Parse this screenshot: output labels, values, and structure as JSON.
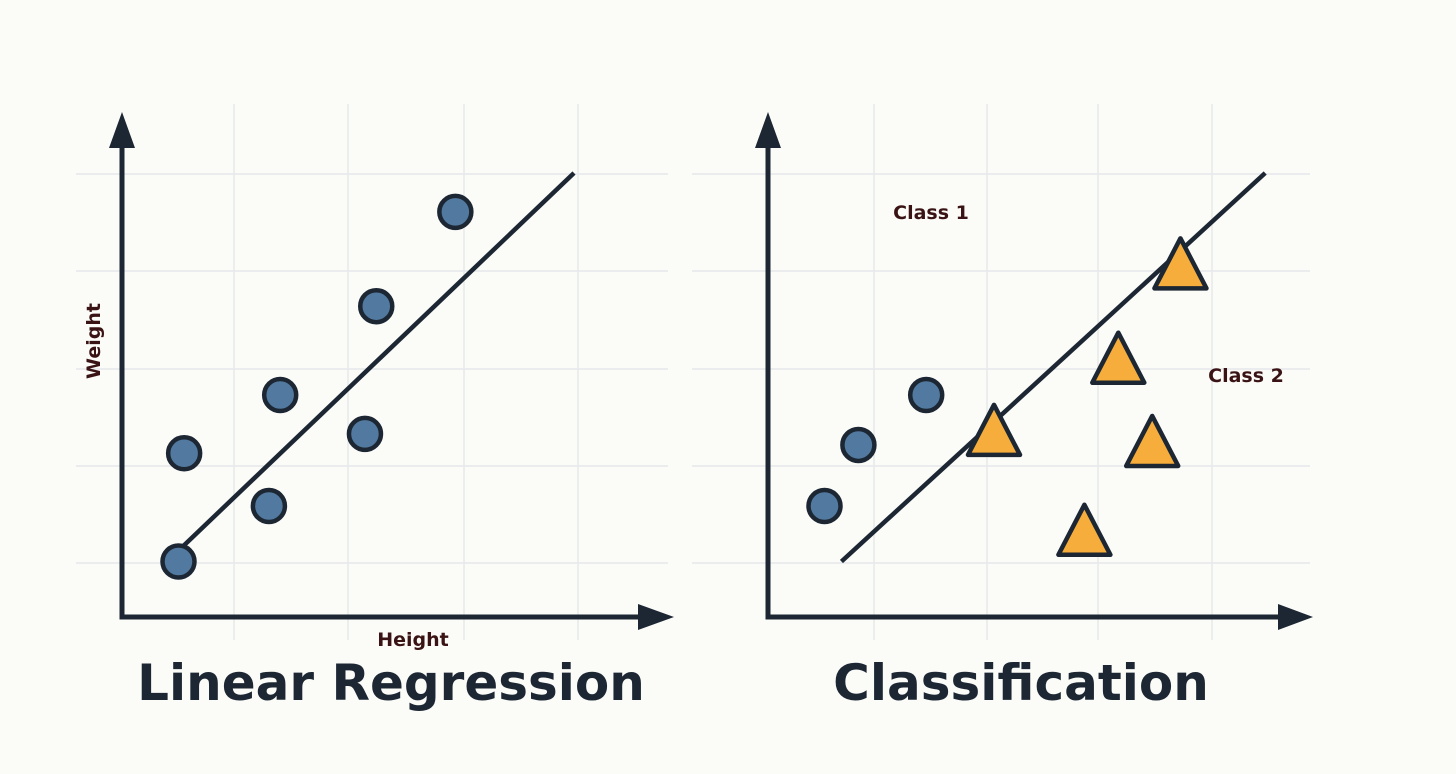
{
  "left_panel": {
    "title": "Linear Regression",
    "x_axis_label": "Height",
    "y_axis_label": "Weight",
    "marker": "circle",
    "points": [
      {
        "x": 1,
        "y": 1
      },
      {
        "x": 1.1,
        "y": 2.95
      },
      {
        "x": 2.6,
        "y": 2
      },
      {
        "x": 2.8,
        "y": 4
      },
      {
        "x": 4.3,
        "y": 3.3
      },
      {
        "x": 4.5,
        "y": 5.6
      },
      {
        "x": 5.9,
        "y": 7.3
      }
    ]
  },
  "right_panel": {
    "title": "Classification",
    "class_labels": [
      "Class 1",
      "Class 2"
    ],
    "classes": [
      {
        "name": "Class 1",
        "marker": "circle",
        "points": [
          {
            "x": 1,
            "y": 2
          },
          {
            "x": 1.6,
            "y": 3.1
          },
          {
            "x": 2.8,
            "y": 4
          }
        ]
      },
      {
        "name": "Class 2",
        "marker": "triangle",
        "points": [
          {
            "x": 4,
            "y": 3.3
          },
          {
            "x": 5.6,
            "y": 1.5
          },
          {
            "x": 6.2,
            "y": 4.6
          },
          {
            "x": 6.8,
            "y": 3.1
          },
          {
            "x": 7.3,
            "y": 6.3
          }
        ]
      }
    ]
  },
  "colors": {
    "background": "#fbfbf8",
    "axis": "#1c2733",
    "grid": "#e6e8ea",
    "circle_fill": "#527aa0",
    "triangle_fill": "#f6ad3b",
    "label_text": "#3a1414"
  },
  "chart_data": [
    {
      "type": "scatter",
      "title": "Linear Regression",
      "xlabel": "Height",
      "ylabel": "Weight",
      "grid": true,
      "series": [
        {
          "values": [
            [
              1,
              1
            ],
            [
              1.1,
              2.95
            ],
            [
              2.6,
              2
            ],
            [
              2.8,
              4
            ],
            [
              4.3,
              3.3
            ],
            [
              4.5,
              5.6
            ],
            [
              5.9,
              7.3
            ]
          ]
        }
      ],
      "fit_line": {
        "from": [
          0.9,
          1.1
        ],
        "to": [
          8,
          8
        ]
      }
    },
    {
      "type": "scatter",
      "title": "Classification",
      "xlabel": "",
      "ylabel": "",
      "grid": true,
      "series": [
        {
          "name": "Class 1",
          "values": [
            [
              1,
              2
            ],
            [
              1.6,
              3.1
            ],
            [
              2.8,
              4
            ]
          ]
        },
        {
          "name": "Class 2",
          "values": [
            [
              4,
              3.3
            ],
            [
              5.6,
              1.5
            ],
            [
              6.2,
              4.6
            ],
            [
              6.8,
              3.1
            ],
            [
              7.3,
              6.3
            ]
          ]
        }
      ],
      "decision_boundary": {
        "from": [
          1.3,
          1
        ],
        "to": [
          8.8,
          8
        ]
      }
    }
  ]
}
